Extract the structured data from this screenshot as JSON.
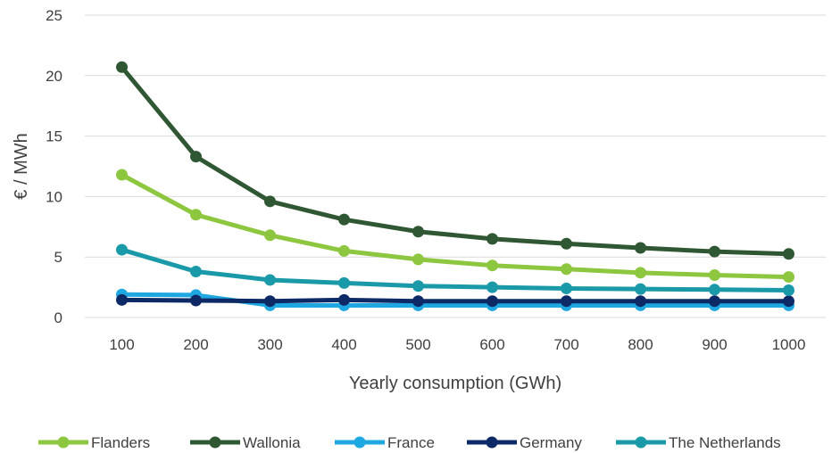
{
  "chart_data": {
    "type": "line",
    "xlabel": "Yearly consumption (GWh)",
    "ylabel": "€ / MWh",
    "x": [
      100,
      200,
      300,
      400,
      500,
      600,
      700,
      800,
      900,
      1000
    ],
    "ylim": [
      0,
      25
    ],
    "yticks": [
      0,
      5,
      10,
      15,
      20,
      25
    ],
    "grid": true,
    "legend_position": "bottom",
    "series": [
      {
        "name": "Flanders",
        "color": "#8dc63f",
        "values": [
          11.8,
          8.5,
          6.8,
          5.5,
          4.8,
          4.3,
          4.0,
          3.7,
          3.5,
          3.35
        ]
      },
      {
        "name": "Wallonia",
        "color": "#2f5733",
        "values": [
          20.7,
          13.3,
          9.6,
          8.1,
          7.1,
          6.5,
          6.1,
          5.75,
          5.45,
          5.25
        ]
      },
      {
        "name": "France",
        "color": "#1ea7e1",
        "values": [
          1.9,
          1.85,
          1.0,
          1.0,
          1.0,
          1.0,
          1.0,
          1.0,
          1.0,
          1.0
        ]
      },
      {
        "name": "Germany",
        "color": "#0d2a66",
        "values": [
          1.45,
          1.4,
          1.35,
          1.45,
          1.35,
          1.35,
          1.35,
          1.35,
          1.35,
          1.35
        ]
      },
      {
        "name": "The Netherlands",
        "color": "#1a9aa8",
        "values": [
          5.6,
          3.8,
          3.1,
          2.85,
          2.6,
          2.5,
          2.4,
          2.35,
          2.3,
          2.25
        ]
      }
    ]
  }
}
